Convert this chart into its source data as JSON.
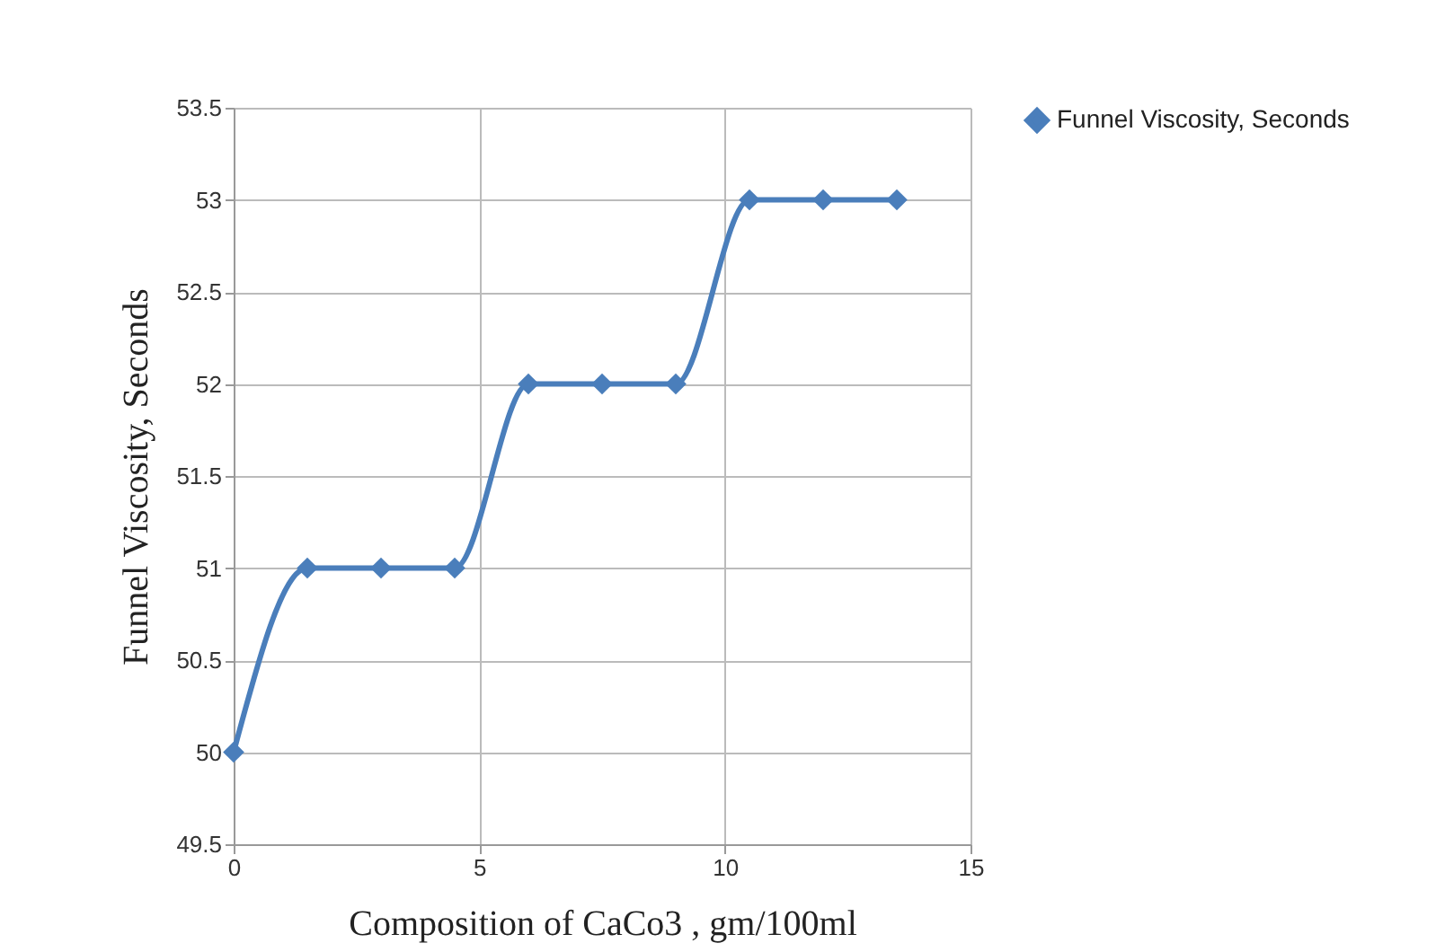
{
  "chart_data": {
    "type": "line",
    "xlabel": "Composition of CaCo3 , gm/100ml",
    "ylabel": "Funnel Viscosity, Seconds",
    "x": [
      0,
      1.5,
      3,
      4.5,
      6,
      7.5,
      9,
      10.5,
      12,
      13.5
    ],
    "series": [
      {
        "name": "Funnel Viscosity, Seconds",
        "color": "#4a7ebb",
        "values": [
          50,
          51,
          51,
          51,
          52,
          52,
          52,
          53,
          53,
          53
        ]
      }
    ],
    "xlim": [
      0,
      15
    ],
    "xticks": [
      0,
      5,
      10,
      15
    ],
    "ylim": [
      49.5,
      53.5
    ],
    "yticks": [
      49.5,
      {
        "value": 50,
        "label": "50"
      },
      50.5,
      {
        "value": 51,
        "label": "51"
      },
      51.5,
      {
        "value": 52,
        "label": "52"
      },
      52.5,
      {
        "value": 53,
        "label": "53"
      },
      53.5
    ],
    "grid": true,
    "legend": "right",
    "marker": "diamond",
    "line_style": "solid"
  }
}
